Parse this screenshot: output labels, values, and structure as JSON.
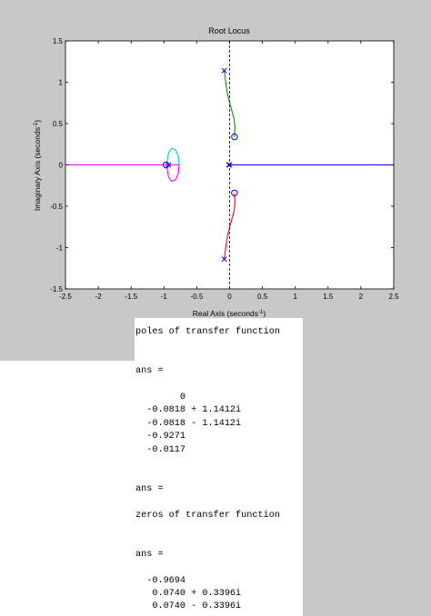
{
  "chart_data": {
    "type": "line",
    "title": "Root Locus",
    "xlabel": "Real Axis (seconds",
    "ylabel": "Imaginary Axis (seconds",
    "axis_unit_exponent": "-1",
    "axis_label_suffix": ")",
    "xlim": [
      -2.5,
      2.5
    ],
    "ylim": [
      -1.5,
      1.5
    ],
    "x_ticks": [
      "-2.5",
      "-2",
      "-1.5",
      "-1",
      "-0.5",
      "0",
      "0.5",
      "1",
      "1.5",
      "2",
      "2.5"
    ],
    "y_ticks": [
      "-1.5",
      "-1",
      "-0.5",
      "0",
      "0.5",
      "1",
      "1.5"
    ],
    "grid": false,
    "poles": [
      [
        0,
        0
      ],
      [
        -0.0818,
        1.1412
      ],
      [
        -0.0818,
        -1.1412
      ],
      [
        -0.9271,
        0
      ],
      [
        -0.0117,
        0
      ]
    ],
    "zeros": [
      [
        -0.9694,
        0
      ],
      [
        0.074,
        0.3396
      ],
      [
        0.074,
        -0.3396
      ]
    ],
    "branches": [
      {
        "color": "#009900",
        "points": [
          [
            -0.0818,
            1.1412
          ],
          [
            -0.06,
            1.0
          ],
          [
            -0.03,
            0.85
          ],
          [
            0.02,
            0.7
          ],
          [
            0.07,
            0.55
          ],
          [
            0.08,
            0.45
          ],
          [
            0.074,
            0.3396
          ]
        ]
      },
      {
        "color": "#ff0000",
        "points": [
          [
            -0.0818,
            -1.1412
          ],
          [
            -0.06,
            -1.0
          ],
          [
            -0.03,
            -0.85
          ],
          [
            0.02,
            -0.7
          ],
          [
            0.07,
            -0.55
          ],
          [
            0.08,
            -0.45
          ],
          [
            0.074,
            -0.3396
          ]
        ]
      },
      {
        "color": "#00cccc",
        "points": [
          [
            -0.9694,
            0
          ],
          [
            -0.95,
            0.05
          ],
          [
            -0.93,
            0.15
          ],
          [
            -0.88,
            0.2
          ],
          [
            -0.82,
            0.18
          ],
          [
            -0.78,
            0.1
          ],
          [
            -0.77,
            0
          ],
          [
            -2.5,
            0
          ],
          [
            -0.9271,
            0
          ]
        ]
      },
      {
        "color": "#ff00ff",
        "points": [
          [
            -0.9694,
            0
          ],
          [
            -0.95,
            -0.05
          ],
          [
            -0.93,
            -0.15
          ],
          [
            -0.88,
            -0.2
          ],
          [
            -0.82,
            -0.18
          ],
          [
            -0.78,
            -0.1
          ],
          [
            -0.77,
            0
          ],
          [
            -2.5,
            0
          ]
        ]
      },
      {
        "color": "#0000ff",
        "points": [
          [
            -0.0117,
            0
          ],
          [
            2.5,
            0
          ]
        ]
      }
    ],
    "colors": {
      "pole_marker": "#0000ff",
      "zero_marker": "#0000ff",
      "axis_dashed": "#000000",
      "frame": "#000000",
      "window_bg": "#c8c8c8",
      "plot_bg": "#ffffff"
    }
  },
  "console": {
    "lines": [
      "poles of transfer function",
      "",
      "",
      "ans =",
      "",
      "        0",
      "  -0.0818 + 1.1412i",
      "  -0.0818 - 1.1412i",
      "  -0.9271",
      "  -0.0117",
      "",
      "",
      "ans =",
      "",
      "zeros of transfer function",
      "",
      "",
      "ans =",
      "",
      "  -0.9694",
      "   0.0740 + 0.3396i",
      "   0.0740 - 0.3396i"
    ]
  }
}
